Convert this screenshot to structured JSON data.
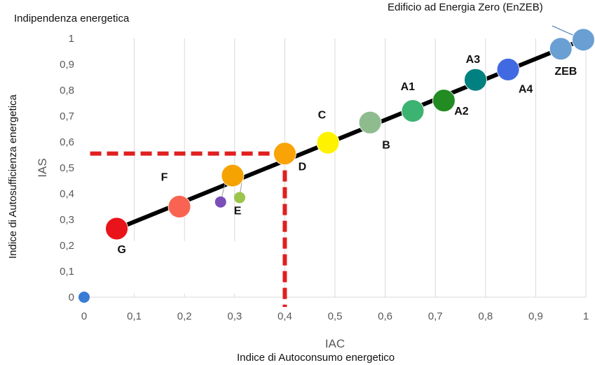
{
  "chart_data": {
    "type": "scatter",
    "title_left": "Indipendenza energetica",
    "title_right": "Edificio ad Energia Zero (EnZEB)",
    "xlabel": "IAC",
    "ylabel": "IAS",
    "x_caption": "Indice di Autoconsumo energetico",
    "y_caption": "Indice di Autosufficienza energetica",
    "xlim": [
      0,
      1
    ],
    "ylim": [
      0,
      1
    ],
    "x_ticks": [
      "0",
      "0,1",
      "0,2",
      "0,3",
      "0,4",
      "0,5",
      "0,6",
      "0,7",
      "0,8",
      "0,9",
      "1"
    ],
    "y_ticks": [
      "0",
      "0,1",
      "0,2",
      "0,3",
      "0,4",
      "0,5",
      "0,6",
      "0,7",
      "0,8",
      "0,9",
      "1"
    ],
    "grid": "vertical",
    "trend_line": {
      "x": [
        0.06,
        1.0
      ],
      "y": [
        0.26,
        1.0
      ],
      "color": "#000000"
    },
    "reference_point": {
      "x": 0.4,
      "y": 0.555,
      "color": "#e02020",
      "style": "dashed"
    },
    "points": [
      {
        "label": "G",
        "x": 0.065,
        "y": 0.265,
        "color": "#e8141a",
        "size": "large"
      },
      {
        "label": "F",
        "x": 0.19,
        "y": 0.35,
        "color": "#f86451",
        "size": "large"
      },
      {
        "label": "E",
        "x": 0.296,
        "y": 0.47,
        "color": "#f5a300",
        "size": "large"
      },
      {
        "label": "",
        "x": 0.272,
        "y": 0.368,
        "color": "#7b4fb8",
        "size": "small"
      },
      {
        "label": "",
        "x": 0.31,
        "y": 0.385,
        "color": "#9bc44a",
        "size": "small"
      },
      {
        "label": "D",
        "x": 0.4,
        "y": 0.555,
        "color": "#f9a307",
        "size": "large"
      },
      {
        "label": "C",
        "x": 0.486,
        "y": 0.597,
        "color": "#fff200",
        "size": "large"
      },
      {
        "label": "B",
        "x": 0.57,
        "y": 0.675,
        "color": "#8fbc8f",
        "size": "large"
      },
      {
        "label": "A1",
        "x": 0.655,
        "y": 0.72,
        "color": "#3cb371",
        "size": "large"
      },
      {
        "label": "A2",
        "x": 0.717,
        "y": 0.76,
        "color": "#228b22",
        "size": "large"
      },
      {
        "label": "A3",
        "x": 0.78,
        "y": 0.84,
        "color": "#008080",
        "size": "large"
      },
      {
        "label": "A4",
        "x": 0.845,
        "y": 0.88,
        "color": "#4169e1",
        "size": "large"
      },
      {
        "label": "ZEB",
        "x": 0.95,
        "y": 0.96,
        "color": "#6a9fd4",
        "size": "large"
      },
      {
        "label": "",
        "x": 0.995,
        "y": 0.995,
        "color": "#6a9fd4",
        "size": "large"
      },
      {
        "label": "",
        "x": 0.0,
        "y": 0.0,
        "color": "#3a7bd5",
        "size": "small"
      }
    ],
    "point_labels": [
      {
        "text": "G",
        "x": 0.075,
        "y": 0.17
      },
      {
        "text": "F",
        "x": 0.16,
        "y": 0.45
      },
      {
        "text": "E",
        "x": 0.306,
        "y": 0.32
      },
      {
        "text": "D",
        "x": 0.435,
        "y": 0.49
      },
      {
        "text": "C",
        "x": 0.474,
        "y": 0.69
      },
      {
        "text": "B",
        "x": 0.602,
        "y": 0.575
      },
      {
        "text": "A1",
        "x": 0.645,
        "y": 0.8
      },
      {
        "text": "A2",
        "x": 0.752,
        "y": 0.705
      },
      {
        "text": "A3",
        "x": 0.775,
        "y": 0.905
      },
      {
        "text": "A4",
        "x": 0.88,
        "y": 0.79
      },
      {
        "text": "ZEB",
        "x": 0.96,
        "y": 0.86
      }
    ]
  }
}
